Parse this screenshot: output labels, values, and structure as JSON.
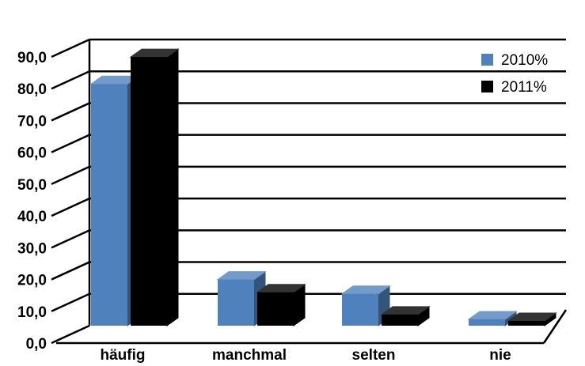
{
  "chart_data": {
    "type": "bar",
    "categories": [
      "häufig",
      "manchmal",
      "selten",
      "nie"
    ],
    "series": [
      {
        "name": "2010%",
        "values": [
          76.0,
          14.5,
          10.0,
          2.0
        ],
        "color": "#4f81bd"
      },
      {
        "name": "2011%",
        "values": [
          84.5,
          10.5,
          3.5,
          1.5
        ],
        "color": "#000000"
      }
    ],
    "y_ticks": [
      "0,0",
      "10,0",
      "20,0",
      "30,0",
      "40,0",
      "50,0",
      "60,0",
      "70,0",
      "80,0",
      "90,0"
    ],
    "ylim": [
      0,
      90
    ],
    "grid": true,
    "legend_position": "top-right",
    "style": "3d-clustered-column"
  }
}
